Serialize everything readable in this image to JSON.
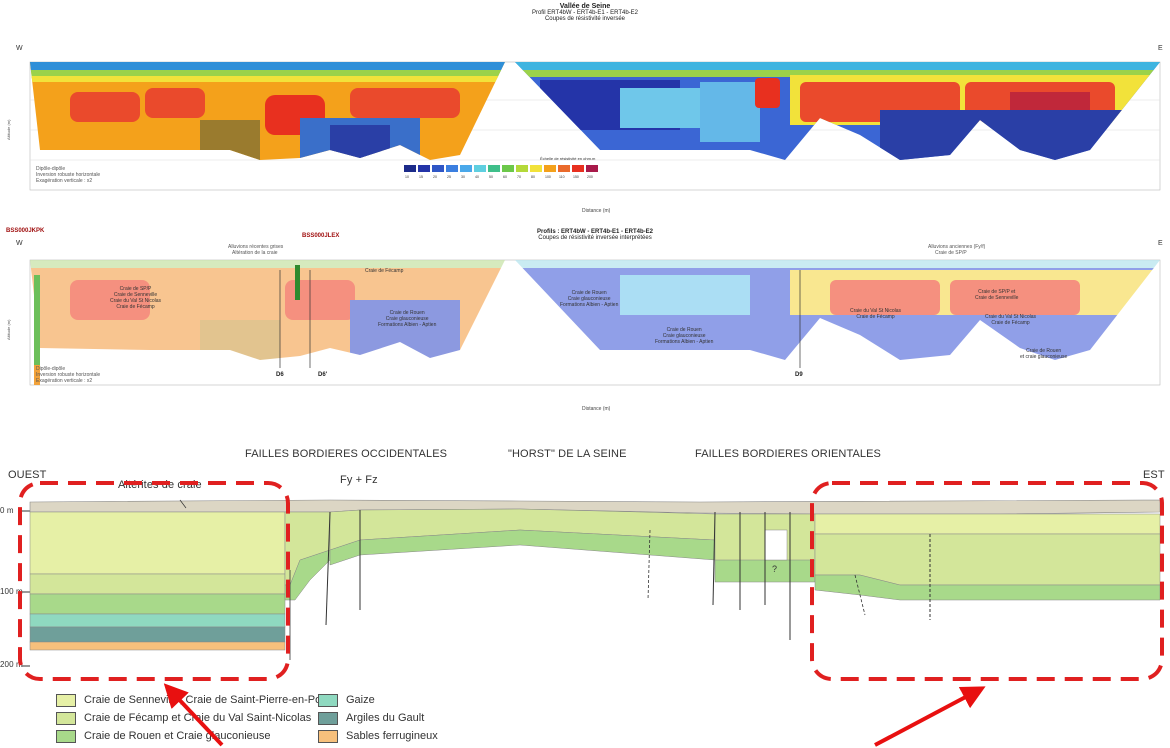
{
  "section1": {
    "title_lines": [
      "Vallée de Seine",
      "Profil ERT4bW - ERT4b-E1 - ERT4b-E2",
      "Coupes de résistivité inversée"
    ],
    "left_label": "W",
    "right_label": "E",
    "notes": [
      "Dipôle-dipôle",
      "Inversion robuste horizontale",
      "Exagération verticale : x2"
    ],
    "scale_title": "Échelle de résistivité en ohm.m",
    "scale_values": [
      "10",
      "15",
      "20",
      "25",
      "30",
      "40",
      "50",
      "60",
      "70",
      "80",
      "100",
      "110",
      "150",
      "200"
    ],
    "xlabel": "Distance (m)",
    "ylabel": "Altitude (m)"
  },
  "section2": {
    "title_lines": [
      "Profils : ERT4bW - ERT4b-E1 - ERT4b-E2",
      "Coupes de résistivité inversée interprétées"
    ],
    "left_label": "W",
    "right_label": "E",
    "boreholes": [
      "BSS000JKPK",
      "BSS000JLEX",
      "D6",
      "D6'",
      "D9"
    ],
    "annotations": [
      "Alluvions récentes grises",
      "Altération de la craie",
      "Alluvions anciennes (Fy/f)",
      "Craie de SP/P"
    ],
    "units": [
      "Craie de SP/P\nCraie de Senneville\nCraie du Val St Nicolas\nCraie de Fécamp",
      "Craie de Fécamp",
      "Craie de Rouen\nCraie glauconieuse\nFormations Albien - Aptien",
      "Craie de Rouen\nCraie glauconieuse\nFormations Albien - Aptien",
      "Craie de Rouen\nCraie glauconieuse\nFormations Albien - Aptien",
      "Craie de SP/P et\nCraie de Senneville",
      "Craie du Val St Nicolas\nCraie de Fécamp",
      "Craie du Val St Nicolas\nCraie de Fécamp",
      "Craie de Rouen\net craie glauconieuse"
    ],
    "notes": [
      "Dipôle-dipôle",
      "Inversion robuste horizontale",
      "Exagération verticale : x2"
    ],
    "xlabel": "Distance (m)",
    "ylabel": "Altitude (m)"
  },
  "section3": {
    "top_labels": [
      "FAILLES BORDIERES OCCIDENTALES",
      "\"HORST\" DE LA SEINE",
      "FAILLES BORDIERES ORIENTALES"
    ],
    "west_label": "OUEST",
    "east_label": "EST",
    "alterites_label": "Altérites de craie",
    "fy_label": "Fy + Fz",
    "question_mark": "?",
    "depth_labels": [
      "0 m",
      "100 m",
      "200 m"
    ],
    "legend": [
      {
        "label": "Craie de Senneville, Craie de Saint-Pierre-en-Port",
        "color": "#e6f0a6"
      },
      {
        "label": "Craie de Fécamp et Craie du Val Saint-Nicolas",
        "color": "#d3e69a"
      },
      {
        "label": "Craie de Rouen et Craie glauconieuse",
        "color": "#a8d98a"
      },
      {
        "label": "Gaize",
        "color": "#8fd9c0"
      },
      {
        "label": "Argiles du Gault",
        "color": "#6f9f9a"
      },
      {
        "label": "Sables ferrugineux",
        "color": "#f7c07c"
      }
    ]
  },
  "colors": {
    "highlight_box": "#e02020",
    "arrow": "#e81010",
    "alluvium": "#d7d2c0"
  }
}
